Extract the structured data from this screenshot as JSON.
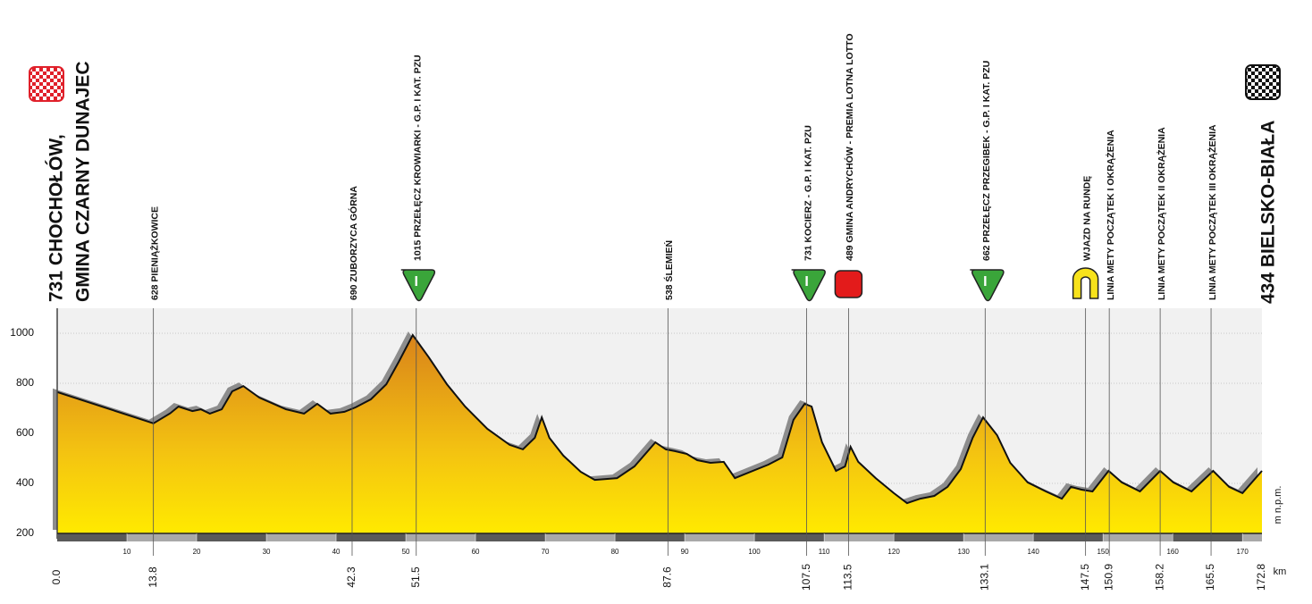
{
  "chart_data": {
    "type": "elevation-profile",
    "x": [
      0,
      13.8,
      16.2,
      17.4,
      19.4,
      20.6,
      21.9,
      23.6,
      25.1,
      26.7,
      29.0,
      32.8,
      35.4,
      37.3,
      39.2,
      41.2,
      42.8,
      45.0,
      47.2,
      49.0,
      51.0,
      53.3,
      55.9,
      58.5,
      61.7,
      64.9,
      66.8,
      68.5,
      69.5,
      70.6,
      72.6,
      75.1,
      77.1,
      80.3,
      82.8,
      85.8,
      87.3,
      88.6,
      90.3,
      91.8,
      93.7,
      95.6,
      97.2,
      98.8,
      102.0,
      104.0,
      105.6,
      107.2,
      108.2,
      109.7,
      111.7,
      113.0,
      113.8,
      114.9,
      117.4,
      120.0,
      121.9,
      123.8,
      125.8,
      127.7,
      129.6,
      131.3,
      132.8,
      134.8,
      136.7,
      139.2,
      141.8,
      144.1,
      145.4,
      146.9,
      148.5,
      150.8,
      152.7,
      155.3,
      158.2,
      160.1,
      162.7,
      165.8,
      168.1,
      170.0,
      172.8
    ],
    "values": [
      765,
      640,
      680,
      707,
      689,
      696,
      679,
      696,
      768,
      789,
      743,
      696,
      679,
      718,
      679,
      686,
      704,
      736,
      796,
      886,
      993,
      904,
      796,
      707,
      618,
      554,
      536,
      582,
      664,
      582,
      511,
      446,
      414,
      421,
      468,
      564,
      536,
      529,
      518,
      493,
      482,
      486,
      421,
      439,
      475,
      504,
      654,
      718,
      707,
      564,
      450,
      468,
      546,
      486,
      421,
      361,
      321,
      339,
      350,
      386,
      457,
      582,
      664,
      593,
      482,
      404,
      368,
      339,
      386,
      375,
      368,
      450,
      404,
      368,
      450,
      404,
      368,
      450,
      386,
      361,
      450
    ],
    "xlim": [
      0,
      172.8
    ],
    "ylim": [
      200,
      1100
    ],
    "yticks": [
      200,
      400,
      600,
      800,
      1000
    ],
    "xticks": [
      10,
      20,
      30,
      40,
      50,
      60,
      70,
      80,
      90,
      100,
      110,
      120,
      130,
      140,
      150,
      160,
      170
    ],
    "grid": true,
    "y_unit": "m n.p.m.",
    "x_unit": "km",
    "start": {
      "km": {
        "value": 0,
        "label": "0.0"
      },
      "label_lines": [
        "731 CHOCHOŁÓW,",
        "GMINA CZARNY DUNAJEC"
      ]
    },
    "finish": {
      "km": 172.8,
      "label": "434 BIELSKO-BIAŁA"
    },
    "waypoints": [
      {
        "km": 13.8,
        "label": "628 PIENIĄŻKOWICE"
      },
      {
        "km": 42.3,
        "label": "690 ZUBORZYCA GÓRNA"
      },
      {
        "km": 51.5,
        "label": "1015 PRZEŁĘCZ KROWIARKI - G.P. I KAT. PZU",
        "icon": "climb",
        "badge": "I"
      },
      {
        "km": 87.6,
        "label": "538 ŚLEMIEŃ"
      },
      {
        "km": 107.5,
        "label": "731 KOCIERZ - G.P. I KAT. PZU",
        "icon": "climb",
        "badge": "I"
      },
      {
        "km": 113.5,
        "label": "489 GMINA ANDRYCHÓW - PREMIA LOTNA LOTTO",
        "icon": "sprint"
      },
      {
        "km": 133.1,
        "label": "662 PRZEŁĘCZ PRZEGIBEK - G.P. I KAT. PZU",
        "icon": "climb",
        "badge": "I"
      },
      {
        "km": 147.5,
        "label": "WJAZD NA RUNDĘ",
        "icon": "lap"
      },
      {
        "km": 150.9,
        "label": "LINIA METY POCZĄTEK I OKRĄŻENIA"
      },
      {
        "km": 158.2,
        "label": "LINIA METY POCZĄTEK II OKRĄŻENIA"
      },
      {
        "km": 165.5,
        "label": "LINIA METY POCZĄTEK III OKRĄŻENIA"
      }
    ]
  }
}
